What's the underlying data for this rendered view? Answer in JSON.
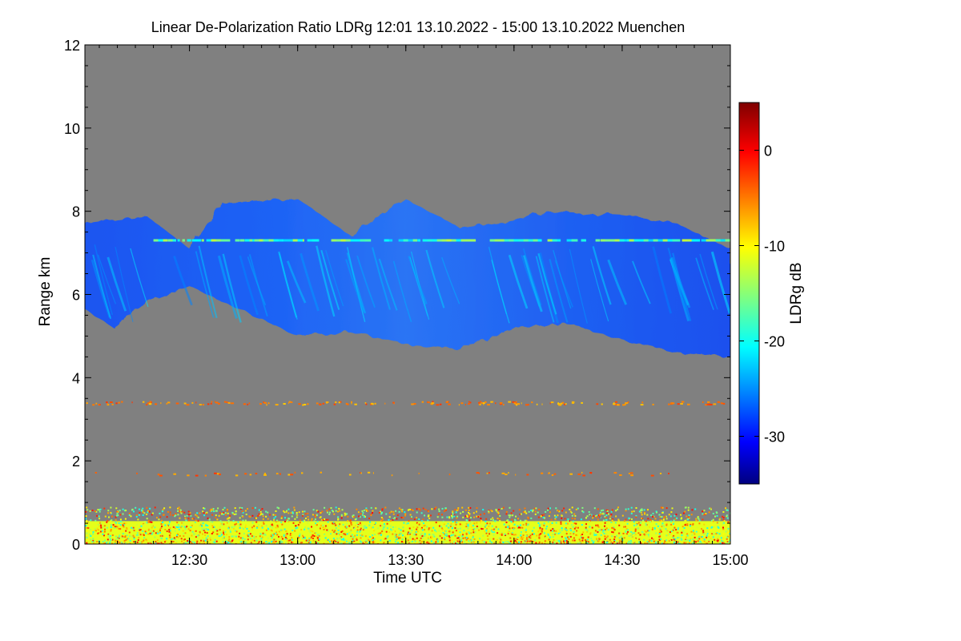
{
  "chart_data": {
    "type": "heatmap",
    "title": "Linear De-Polarization Ratio LDRg   12:01 13.10.2022 - 15:00 13.10.2022 Muenchen",
    "xlabel": "Time UTC",
    "ylabel": "Range km",
    "x_range": [
      "12:01",
      "15:00"
    ],
    "x_ticks": [
      "12:30",
      "13:00",
      "13:30",
      "14:00",
      "14:30",
      "15:00"
    ],
    "y_range": [
      0,
      12
    ],
    "y_ticks": [
      "0",
      "2",
      "4",
      "6",
      "8",
      "10",
      "12"
    ],
    "colorbar": {
      "label": "LDRg dB",
      "range": [
        -35,
        5
      ],
      "ticks": [
        "0",
        "-10",
        "-20",
        "-30"
      ],
      "colormap": "jet"
    },
    "background_color": "#808080",
    "features": [
      {
        "name": "cirrus-layer",
        "ldr_db": -27,
        "time_start": "12:01",
        "time_end": "15:00",
        "top_km": [
          [
            12.0,
            7.7
          ],
          [
            12.3,
            7.9
          ],
          [
            12.5,
            7.1
          ],
          [
            12.65,
            8.2
          ],
          [
            13.0,
            8.3
          ],
          [
            13.25,
            7.4
          ],
          [
            13.5,
            8.3
          ],
          [
            13.75,
            7.6
          ],
          [
            14.0,
            7.8
          ],
          [
            14.15,
            8.0
          ],
          [
            14.5,
            7.9
          ],
          [
            14.75,
            7.7
          ],
          [
            15.0,
            7.1
          ]
        ],
        "base_km": [
          [
            12.0,
            5.7
          ],
          [
            12.15,
            5.2
          ],
          [
            12.3,
            5.8
          ],
          [
            12.5,
            6.2
          ],
          [
            12.75,
            5.6
          ],
          [
            13.0,
            5.0
          ],
          [
            13.25,
            5.1
          ],
          [
            13.5,
            4.8
          ],
          [
            13.75,
            4.7
          ],
          [
            14.0,
            5.2
          ],
          [
            14.25,
            5.3
          ],
          [
            14.5,
            4.9
          ],
          [
            14.75,
            4.6
          ],
          [
            15.0,
            4.5
          ]
        ]
      },
      {
        "name": "thin-line-7.3km",
        "range_km": 7.3,
        "ldr_db": -14,
        "time_start": "12:20",
        "time_end": "15:00"
      },
      {
        "name": "speckle-band-3.4km",
        "range_km": 3.4,
        "ldr_db": -4
      },
      {
        "name": "speckle-band-1.7km",
        "range_km": 1.7,
        "ldr_db": -4
      },
      {
        "name": "boundary-layer",
        "top_km": 0.9,
        "ldr_db_range": [
          -20,
          0
        ]
      }
    ]
  }
}
